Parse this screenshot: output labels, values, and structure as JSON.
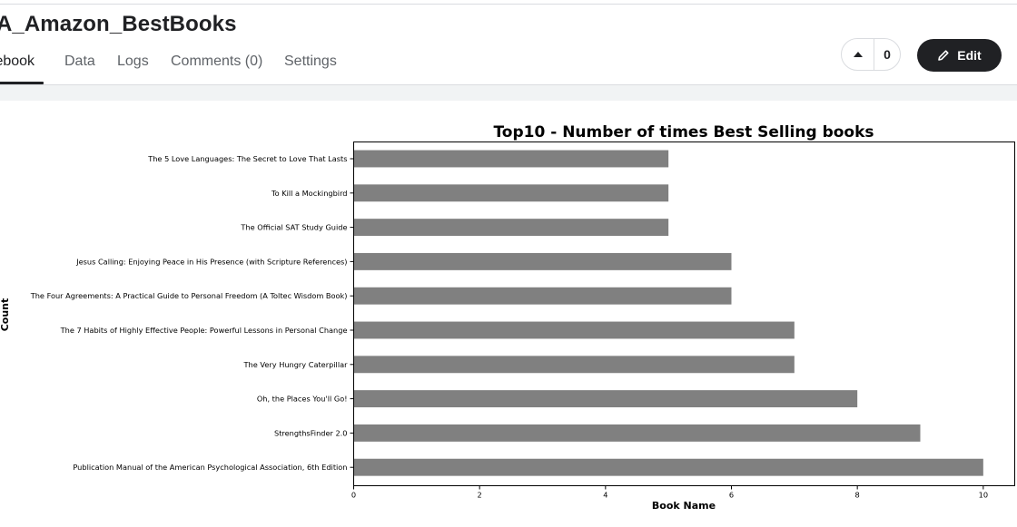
{
  "notebook": {
    "title": "A_Amazon_BestBooks",
    "tabs": [
      {
        "label": "Notebook",
        "shown": "tebook"
      },
      {
        "label": "Data"
      },
      {
        "label": "Logs"
      },
      {
        "label": "Comments (0)"
      },
      {
        "label": "Settings"
      }
    ],
    "vote_count": "0",
    "edit_label": "Edit"
  },
  "icons": {
    "upvote": "caret-up-icon",
    "edit": "pencil-icon"
  },
  "colors": {
    "bar": "#808080",
    "button_dark": "#202124"
  },
  "chart_data": {
    "type": "bar",
    "orientation": "horizontal",
    "title": "Top10 - Number of times Best Selling books",
    "xlabel": "Book Name",
    "ylabel": "Count",
    "categories": [
      "The 5 Love Languages: The Secret to Love That Lasts",
      "To Kill a Mockingbird",
      "The Official SAT Study Guide",
      "Jesus Calling: Enjoying Peace in His Presence (with Scripture References)",
      "The Four Agreements: A Practical Guide to Personal Freedom (A Toltec Wisdom Book)",
      "The 7 Habits of Highly Effective People: Powerful Lessons in Personal Change",
      "The Very Hungry Caterpillar",
      "Oh, the Places You'll Go!",
      "StrengthsFinder 2.0",
      "Publication Manual of the American Psychological Association, 6th Edition"
    ],
    "values": [
      5,
      5,
      5,
      6,
      6,
      7,
      7,
      8,
      9,
      10
    ],
    "xlim": [
      0,
      10.5
    ],
    "xticks": [
      "0",
      "2",
      "4",
      "6",
      "8",
      "10"
    ],
    "grid": false
  }
}
